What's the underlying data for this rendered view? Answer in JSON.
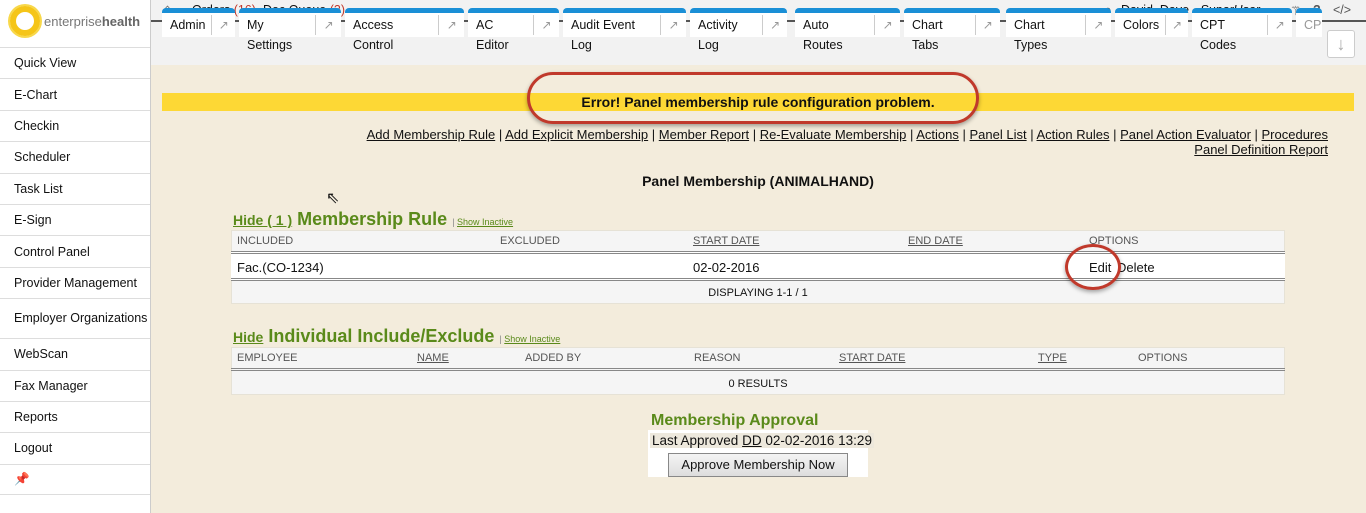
{
  "brand": {
    "name_light": "enterprise",
    "name_bold": "health"
  },
  "sidebar": {
    "items": [
      {
        "label": "Quick View"
      },
      {
        "label": "E-Chart"
      },
      {
        "label": "Checkin"
      },
      {
        "label": "Scheduler"
      },
      {
        "label": "Task List"
      },
      {
        "label": "E-Sign"
      },
      {
        "label": "Control Panel"
      },
      {
        "label": "Provider Management"
      },
      {
        "label": "Employer Organizations"
      },
      {
        "label": "WebScan"
      },
      {
        "label": "Fax Manager"
      },
      {
        "label": "Reports"
      },
      {
        "label": "Logout"
      }
    ],
    "pin_icon": "pin-icon"
  },
  "topbar": {
    "orders_label": "Orders",
    "orders_count": "(16)",
    "docqueue_label": "Doc Queue",
    "docqueue_count": "(3)",
    "user_name": "David, Dave - ",
    "user_role": "SuperUser"
  },
  "tabs": [
    {
      "label": "Admin"
    },
    {
      "label": "My Settings"
    },
    {
      "label": "Access Control"
    },
    {
      "label": "AC Editor"
    },
    {
      "label": "Audit Event Log"
    },
    {
      "label": "Activity Log"
    },
    {
      "label": "Auto Routes"
    },
    {
      "label": "Chart Tabs"
    },
    {
      "label": "Chart Types"
    },
    {
      "label": "Colors"
    },
    {
      "label": "CPT Codes"
    },
    {
      "label": "CP"
    }
  ],
  "error": {
    "message": "Error! Panel membership rule configuration problem."
  },
  "links": [
    "Add Membership Rule",
    "Add Explicit Membership",
    "Member Report",
    "Re-Evaluate Membership",
    "Actions",
    "Panel List",
    "Action Rules",
    "Panel Action Evaluator",
    "Procedures",
    "Panel Definition Report"
  ],
  "page_title": "Panel Membership (ANIMALHAND)",
  "rules": {
    "hide": "Hide ( 1 )",
    "title": "Membership Rule",
    "show_inactive": "Show Inactive",
    "columns": [
      "INCLUDED",
      "EXCLUDED",
      "START DATE",
      "END DATE",
      "OPTIONS"
    ],
    "row": {
      "included": "Fac.(CO-1234)",
      "excluded": "",
      "start": "02-02-2016",
      "end": "",
      "edit": "Edit",
      "delete": "Delete"
    },
    "footer": "DISPLAYING 1-1 / 1"
  },
  "individual": {
    "hide": "Hide",
    "title": "Individual Include/Exclude",
    "show_inactive": "Show Inactive",
    "columns": [
      "EMPLOYEE",
      "NAME",
      "ADDED BY",
      "REASON",
      "START DATE",
      "TYPE",
      "OPTIONS"
    ],
    "footer": "0 RESULTS"
  },
  "approval": {
    "title": "Membership Approval",
    "last_label": "Last Approved",
    "by": "DD",
    "date": "02-02-2016 13:29",
    "button": "Approve Membership Now"
  },
  "colors": {
    "accent": "#1a8fd6",
    "error_bg": "#fdd835",
    "section_title": "#5a8a1a",
    "annotation": "#c0392b"
  }
}
